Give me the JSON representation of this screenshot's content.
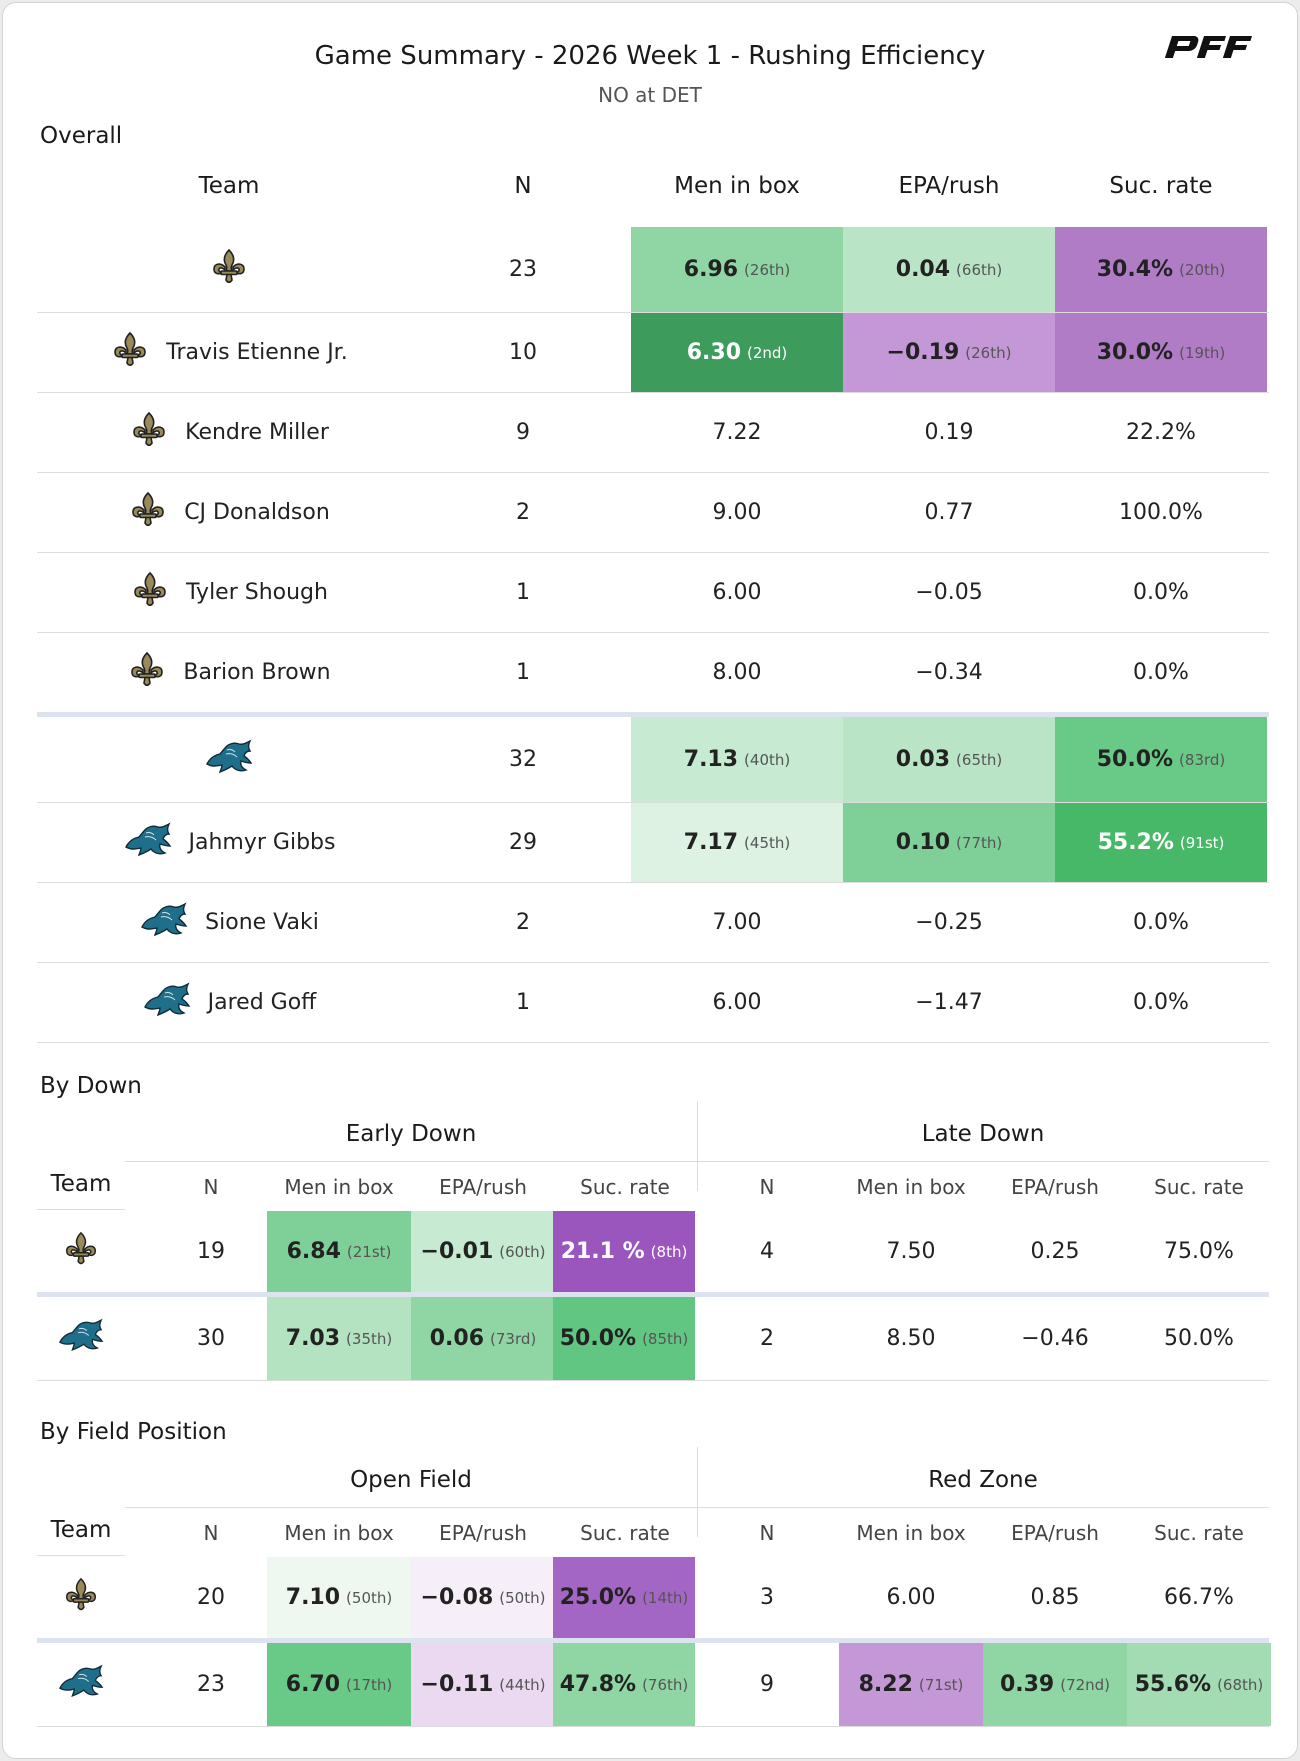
{
  "title": "Game Summary - 2026 Week 1 - Rushing Efficiency",
  "subtitle": "NO at DET",
  "brand": "PFF",
  "colors": {
    "brand_black": "#111111",
    "green_darkest": "#3d9c5b",
    "green_dark": "#47b868",
    "green_mid": "#69c987",
    "green_light": "#8fd6a4",
    "green_pale": "#c6ead2",
    "green_faint": "#eef8f1",
    "purple_dark": "#9a56bd",
    "purple_mid": "#b07cc6",
    "purple_light": "#c497d6",
    "purple_pale": "#ead9f0",
    "purple_faint": "#f6eef8"
  },
  "overall": {
    "section": "Overall",
    "headers": {
      "team": "Team",
      "n": "N",
      "men_in_box": "Men in box",
      "epa": "EPA/rush",
      "suc": "Suc. rate"
    },
    "rows": [
      {
        "team": "NO",
        "icon": "saints-fleur-de-lis-icon",
        "name": "",
        "n": "23",
        "mib": {
          "v": "6.96",
          "r": "(26th)",
          "bg": "#8fd6a4"
        },
        "epa": {
          "v": "0.04",
          "r": "(66th)",
          "bg": "#b9e5c6"
        },
        "suc": {
          "v": "30.4%",
          "r": "(20th)",
          "bg": "#b07cc6"
        }
      },
      {
        "team": "NO",
        "icon": "saints-fleur-de-lis-icon",
        "name": "Travis Etienne Jr.",
        "n": "10",
        "mib": {
          "v": "6.30",
          "r": "(2nd)",
          "bg": "#3d9c5b",
          "dark": true
        },
        "epa": {
          "v": "−0.19",
          "r": "(26th)",
          "bg": "#c497d6"
        },
        "suc": {
          "v": "30.0%",
          "r": "(19th)",
          "bg": "#b07cc6"
        }
      },
      {
        "team": "NO",
        "icon": "saints-fleur-de-lis-icon",
        "name": "Kendre Miller",
        "n": "9",
        "mib": {
          "v": "7.22"
        },
        "epa": {
          "v": "0.19"
        },
        "suc": {
          "v": "22.2%"
        }
      },
      {
        "team": "NO",
        "icon": "saints-fleur-de-lis-icon",
        "name": "CJ Donaldson",
        "n": "2",
        "mib": {
          "v": "9.00"
        },
        "epa": {
          "v": "0.77"
        },
        "suc": {
          "v": "100.0%"
        }
      },
      {
        "team": "NO",
        "icon": "saints-fleur-de-lis-icon",
        "name": "Tyler Shough",
        "n": "1",
        "mib": {
          "v": "6.00"
        },
        "epa": {
          "v": "−0.05"
        },
        "suc": {
          "v": "0.0%"
        }
      },
      {
        "team": "NO",
        "icon": "saints-fleur-de-lis-icon",
        "name": "Barion Brown",
        "n": "1",
        "mib": {
          "v": "8.00"
        },
        "epa": {
          "v": "−0.34"
        },
        "suc": {
          "v": "0.0%"
        }
      },
      {
        "team": "DET",
        "icon": "lions-logo-icon",
        "name": "",
        "n": "32",
        "mib": {
          "v": "7.13",
          "r": "(40th)",
          "bg": "#c6ead2"
        },
        "epa": {
          "v": "0.03",
          "r": "(65th)",
          "bg": "#b9e5c6"
        },
        "suc": {
          "v": "50.0%",
          "r": "(83rd)",
          "bg": "#69c987"
        }
      },
      {
        "team": "DET",
        "icon": "lions-logo-icon",
        "name": "Jahmyr Gibbs",
        "n": "29",
        "mib": {
          "v": "7.17",
          "r": "(45th)",
          "bg": "#ddf2e3"
        },
        "epa": {
          "v": "0.10",
          "r": "(77th)",
          "bg": "#7fd098"
        },
        "suc": {
          "v": "55.2%",
          "r": "(91st)",
          "bg": "#47b868",
          "dark": true
        }
      },
      {
        "team": "DET",
        "icon": "lions-logo-icon",
        "name": "Sione Vaki",
        "n": "2",
        "mib": {
          "v": "7.00"
        },
        "epa": {
          "v": "−0.25"
        },
        "suc": {
          "v": "0.0%"
        }
      },
      {
        "team": "DET",
        "icon": "lions-logo-icon",
        "name": "Jared Goff",
        "n": "1",
        "mib": {
          "v": "6.00"
        },
        "epa": {
          "v": "−1.47"
        },
        "suc": {
          "v": "0.0%"
        }
      }
    ]
  },
  "by_down": {
    "section": "By Down",
    "group_left": "Early Down",
    "group_right": "Late Down",
    "team_header": "Team",
    "sub_headers": [
      "N",
      "Men in box",
      "EPA/rush",
      "Suc. rate",
      "N",
      "Men in box",
      "EPA/rush",
      "Suc. rate"
    ],
    "rows": [
      {
        "team": "NO",
        "icon": "saints-fleur-de-lis-icon",
        "cells": [
          {
            "v": "19",
            "plain": true
          },
          {
            "v": "6.84",
            "r": "(21st)",
            "bg": "#7fd098"
          },
          {
            "v": "−0.01",
            "r": "(60th)",
            "bg": "#c6ead2"
          },
          {
            "v": "21.1 %",
            "r": "(8th)",
            "bg": "#9a56bd",
            "dark": true
          },
          {
            "v": "4",
            "plain": true
          },
          {
            "v": "7.50",
            "plain": true
          },
          {
            "v": "0.25",
            "plain": true
          },
          {
            "v": "75.0%",
            "plain": true
          }
        ]
      },
      {
        "team": "DET",
        "icon": "lions-logo-icon",
        "cells": [
          {
            "v": "30",
            "plain": true
          },
          {
            "v": "7.03",
            "r": "(35th)",
            "bg": "#b3e3c1"
          },
          {
            "v": "0.06",
            "r": "(73rd)",
            "bg": "#8fd6a4"
          },
          {
            "v": "50.0%",
            "r": "(85th)",
            "bg": "#62c683"
          },
          {
            "v": "2",
            "plain": true
          },
          {
            "v": "8.50",
            "plain": true
          },
          {
            "v": "−0.46",
            "plain": true
          },
          {
            "v": "50.0%",
            "plain": true
          }
        ]
      }
    ]
  },
  "by_field": {
    "section": "By Field Position",
    "group_left": "Open Field",
    "group_right": "Red Zone",
    "team_header": "Team",
    "sub_headers": [
      "N",
      "Men in box",
      "EPA/rush",
      "Suc. rate",
      "N",
      "Men in box",
      "EPA/rush",
      "Suc. rate"
    ],
    "rows": [
      {
        "team": "NO",
        "icon": "saints-fleur-de-lis-icon",
        "cells": [
          {
            "v": "20",
            "plain": true
          },
          {
            "v": "7.10",
            "r": "(50th)",
            "bg": "#eef8f1"
          },
          {
            "v": "−0.08",
            "r": "(50th)",
            "bg": "#f6eef8"
          },
          {
            "v": "25.0%",
            "r": "(14th)",
            "bg": "#a466c4"
          },
          {
            "v": "3",
            "plain": true
          },
          {
            "v": "6.00",
            "plain": true
          },
          {
            "v": "0.85",
            "plain": true
          },
          {
            "v": "66.7%",
            "plain": true
          }
        ]
      },
      {
        "team": "DET",
        "icon": "lions-logo-icon",
        "cells": [
          {
            "v": "23",
            "plain": true
          },
          {
            "v": "6.70",
            "r": "(17th)",
            "bg": "#69c987"
          },
          {
            "v": "−0.11",
            "r": "(44th)",
            "bg": "#ead9f0"
          },
          {
            "v": "47.8%",
            "r": "(76th)",
            "bg": "#8fd6a4"
          },
          {
            "v": "9",
            "plain": true
          },
          {
            "v": "8.22",
            "r": "(71st)",
            "bg": "#c497d6"
          },
          {
            "v": "0.39",
            "r": "(72nd)",
            "bg": "#8fd6a4"
          },
          {
            "v": "55.6%",
            "r": "(68th)",
            "bg": "#a3dcb2"
          }
        ]
      }
    ]
  }
}
